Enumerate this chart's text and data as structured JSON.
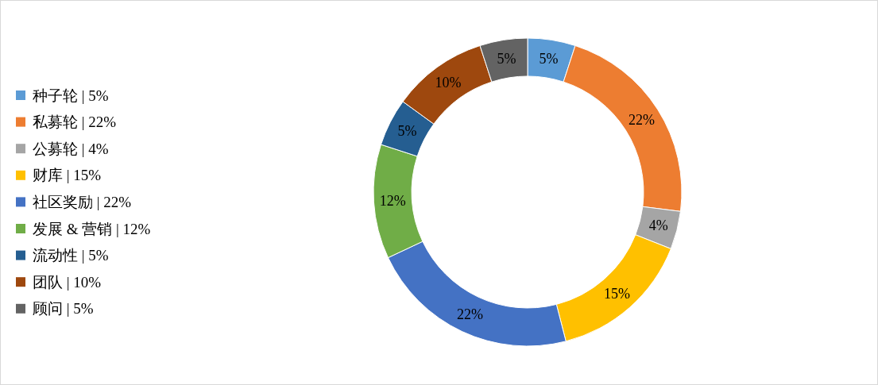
{
  "chart_data": {
    "type": "donut",
    "categories": [
      "种子轮 | 5%",
      "私募轮 | 22%",
      "公募轮 | 4%",
      "财库 | 15%",
      "社区奖励 | 22%",
      "发展 & 营销 | 12%",
      "流动性 | 5%",
      "团队 | 10%",
      "顾问 | 5%"
    ],
    "values": [
      5,
      22,
      4,
      15,
      22,
      12,
      5,
      10,
      5
    ],
    "value_labels": [
      "5%",
      "22%",
      "4%",
      "15%",
      "22%",
      "12%",
      "5%",
      "10%",
      "5%"
    ],
    "colors": [
      "#5b9bd5",
      "#ed7d31",
      "#a5a5a5",
      "#ffc000",
      "#4472c4",
      "#70ad47",
      "#255e91",
      "#9e480e",
      "#636363"
    ],
    "legend": "left"
  }
}
